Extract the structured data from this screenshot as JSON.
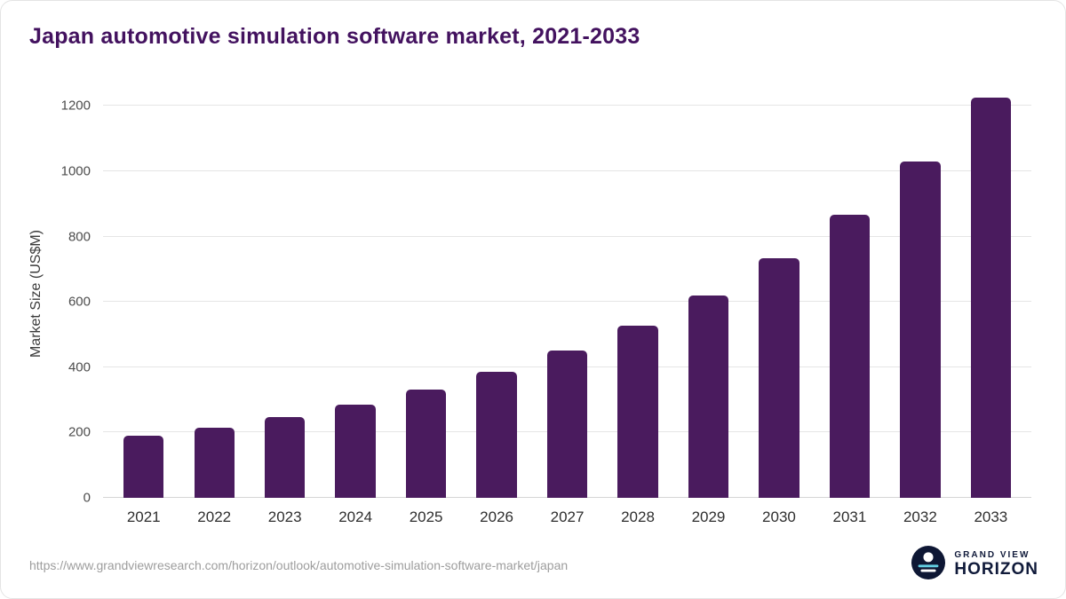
{
  "colors": {
    "bar": "#4a1b5e",
    "title": "#43125f",
    "logo_navy": "#0e1734",
    "logo_teal": "#63cfe3"
  },
  "chart_data": {
    "type": "bar",
    "title": "Japan automotive simulation software market, 2021-2033",
    "ylabel": "Market Size (US$M)",
    "xlabel": "",
    "categories": [
      "2021",
      "2022",
      "2023",
      "2024",
      "2025",
      "2026",
      "2027",
      "2028",
      "2029",
      "2030",
      "2031",
      "2032",
      "2033"
    ],
    "values": [
      190,
      215,
      247,
      285,
      331,
      386,
      450,
      528,
      620,
      734,
      868,
      1030,
      1226
    ],
    "yticks": [
      0,
      200,
      400,
      600,
      800,
      1000,
      1200
    ],
    "ylim": [
      0,
      1250
    ],
    "grid": true,
    "legend": "none"
  },
  "footer": {
    "url": "https://www.grandviewresearch.com/horizon/outlook/automotive-simulation-software-market/japan",
    "logo_top": "GRAND VIEW",
    "logo_bottom": "HORIZON"
  }
}
